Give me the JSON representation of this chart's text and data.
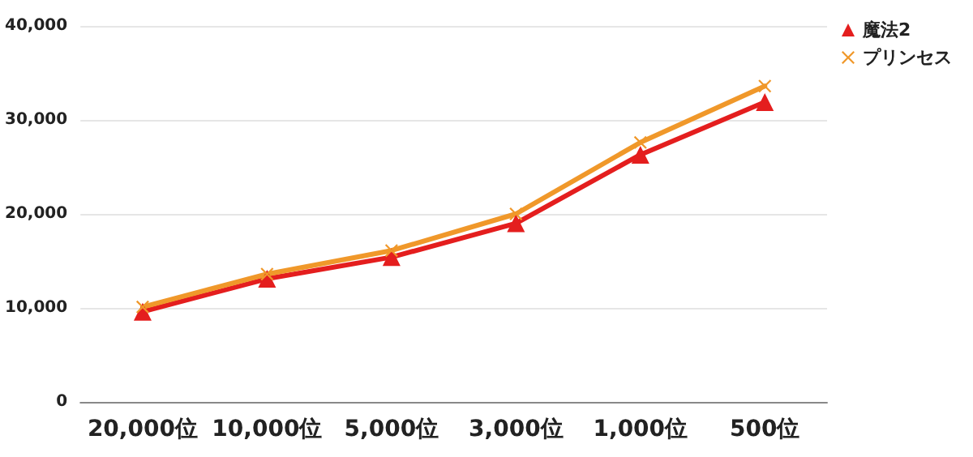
{
  "chart_data": {
    "type": "line",
    "categories": [
      "20,000位",
      "10,000位",
      "5,000位",
      "3,000位",
      "1,000位",
      "500位"
    ],
    "series": [
      {
        "name": "魔法2",
        "color": "#e41e1e",
        "marker": "triangle",
        "values": [
          9600,
          13100,
          15400,
          19000,
          26300,
          31900
        ]
      },
      {
        "name": "プリンセス",
        "color": "#f0982a",
        "marker": "cross",
        "values": [
          10100,
          13600,
          16100,
          20000,
          27600,
          33600
        ]
      }
    ],
    "ylim": [
      0,
      40000
    ],
    "yticks": [
      0,
      {
        "value": 10000,
        "label": "10,000"
      },
      {
        "value": 20000,
        "label": "20,000"
      },
      {
        "value": 30000,
        "label": "30,000"
      },
      {
        "value": 40000,
        "label": "40,000"
      }
    ],
    "grid": "y",
    "legend": "top right",
    "line_style": "solid"
  }
}
